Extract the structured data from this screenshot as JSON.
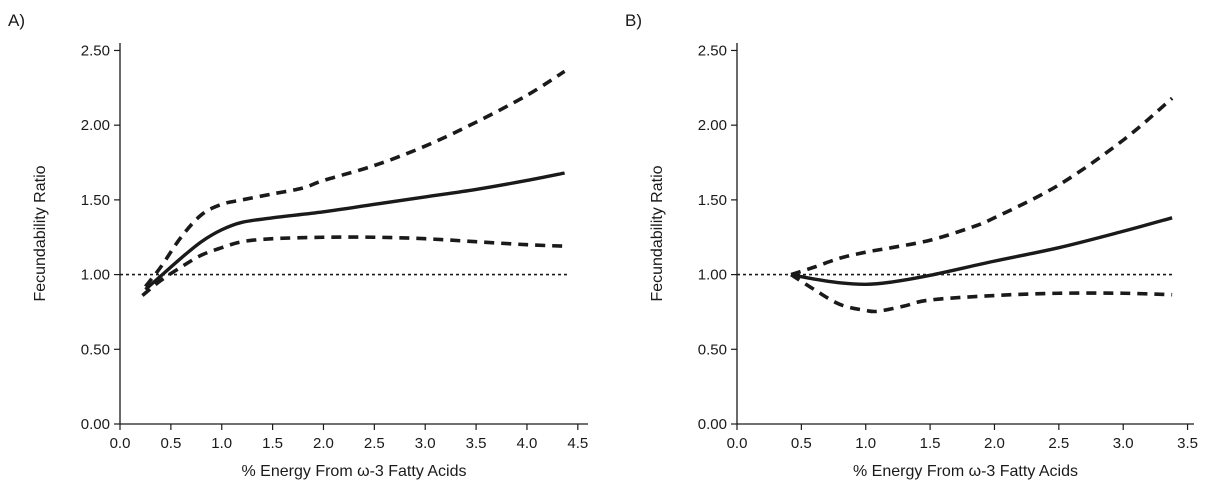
{
  "chart_data": [
    {
      "type": "line",
      "panel_label": "A)",
      "xlabel": "% Energy From ω-3 Fatty Acids",
      "ylabel": "Fecundability Ratio",
      "xlim": [
        0.0,
        4.6
      ],
      "ylim": [
        0.0,
        2.55
      ],
      "xticks": [
        0.0,
        0.5,
        1.0,
        1.5,
        2.0,
        2.5,
        3.0,
        3.5,
        4.0,
        4.5
      ],
      "xtick_labels": [
        "0.0",
        "0.5",
        "1.0",
        "1.5",
        "2.0",
        "2.5",
        "3.0",
        "3.5",
        "4.0",
        "4.5"
      ],
      "yticks": [
        0.0,
        0.5,
        1.0,
        1.5,
        2.0,
        2.5
      ],
      "ytick_labels": [
        "0.00",
        "0.50",
        "1.00",
        "1.50",
        "2.00",
        "2.50"
      ],
      "reference_line": 1.0,
      "grid": false,
      "series": [
        {
          "role": "estimate",
          "style": "solid",
          "x": [
            0.25,
            0.4,
            0.6,
            0.8,
            1.0,
            1.2,
            1.5,
            2.0,
            2.5,
            3.0,
            3.5,
            4.0,
            4.37
          ],
          "y": [
            0.9,
            0.99,
            1.11,
            1.22,
            1.3,
            1.35,
            1.38,
            1.42,
            1.47,
            1.52,
            1.57,
            1.63,
            1.68
          ]
        },
        {
          "role": "upper",
          "style": "dashed",
          "x": [
            0.25,
            0.4,
            0.6,
            0.8,
            1.0,
            1.2,
            1.5,
            1.8,
            2.0,
            2.5,
            3.0,
            3.5,
            4.0,
            4.37
          ],
          "y": [
            0.92,
            1.05,
            1.25,
            1.4,
            1.47,
            1.5,
            1.54,
            1.58,
            1.63,
            1.73,
            1.86,
            2.02,
            2.2,
            2.36
          ]
        },
        {
          "role": "lower",
          "style": "dashed",
          "x": [
            0.22,
            0.4,
            0.6,
            0.8,
            1.0,
            1.2,
            1.5,
            2.0,
            2.5,
            3.0,
            3.5,
            4.0,
            4.37
          ],
          "y": [
            0.86,
            0.96,
            1.05,
            1.13,
            1.18,
            1.22,
            1.24,
            1.25,
            1.25,
            1.24,
            1.22,
            1.2,
            1.19
          ]
        }
      ]
    },
    {
      "type": "line",
      "panel_label": "B)",
      "xlabel": "% Energy From ω-3 Fatty Acids",
      "ylabel": "Fecundability Ratio",
      "xlim": [
        0.0,
        3.55
      ],
      "ylim": [
        0.0,
        2.55
      ],
      "xticks": [
        0.0,
        0.5,
        1.0,
        1.5,
        2.0,
        2.5,
        3.0,
        3.5
      ],
      "xtick_labels": [
        "0.0",
        "0.5",
        "1.0",
        "1.5",
        "2.0",
        "2.5",
        "3.0",
        "3.5"
      ],
      "yticks": [
        0.0,
        0.5,
        1.0,
        1.5,
        2.0,
        2.5
      ],
      "ytick_labels": [
        "0.00",
        "0.50",
        "1.00",
        "1.50",
        "2.00",
        "2.50"
      ],
      "reference_line": 1.0,
      "grid": false,
      "series": [
        {
          "role": "estimate",
          "style": "solid",
          "x": [
            0.42,
            0.6,
            0.8,
            1.0,
            1.2,
            1.5,
            2.0,
            2.5,
            3.0,
            3.38
          ],
          "y": [
            1.0,
            0.97,
            0.945,
            0.935,
            0.95,
            0.995,
            1.09,
            1.18,
            1.29,
            1.38
          ]
        },
        {
          "role": "upper",
          "style": "dashed",
          "x": [
            0.42,
            0.6,
            0.8,
            1.0,
            1.2,
            1.5,
            1.8,
            2.0,
            2.5,
            3.0,
            3.38
          ],
          "y": [
            1.0,
            1.05,
            1.11,
            1.15,
            1.18,
            1.23,
            1.31,
            1.38,
            1.6,
            1.9,
            2.18
          ]
        },
        {
          "role": "lower",
          "style": "dashed",
          "x": [
            0.42,
            0.6,
            0.8,
            1.0,
            1.1,
            1.3,
            1.5,
            2.0,
            2.5,
            3.0,
            3.38
          ],
          "y": [
            1.0,
            0.9,
            0.8,
            0.76,
            0.755,
            0.79,
            0.83,
            0.86,
            0.875,
            0.875,
            0.865
          ]
        }
      ]
    }
  ]
}
